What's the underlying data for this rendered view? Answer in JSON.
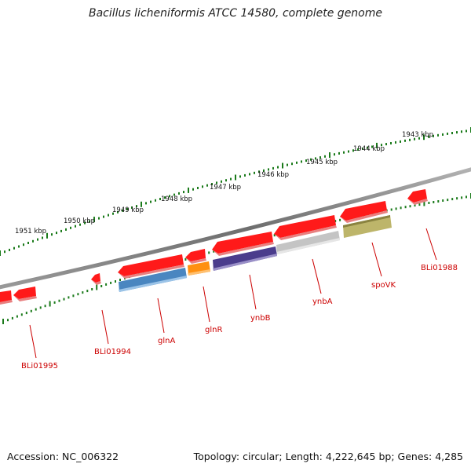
{
  "title": "Bacillus licheniformis ATCC 14580, complete genome",
  "accession": "Accession: NC_006322",
  "stats": "Topology: circular; Length: 4,222,645 bp; Genes: 4,285",
  "colors": {
    "backbone": "#7a7a7a",
    "tick": "#1a7a1a",
    "label": "#cc0000",
    "gene_default": "#ff1a1a",
    "glnA": "#4a86c0",
    "glnR": "#ff9010",
    "ynbB": "#4a3c8c",
    "ynbA": "#bfbfbf",
    "spoVK": "#bdb56a"
  },
  "kbp_labels": [
    "1943 kbp",
    "1944 kbp",
    "1945 kbp",
    "1946 kbp",
    "1947 kbp",
    "1948 kbp",
    "1949 kbp",
    "1950 kbp",
    "1951 kbp"
  ],
  "gene_labels": [
    "BLi01988",
    "spoVK",
    "ynbA",
    "ynbB",
    "glnR",
    "glnA",
    "BLi01994",
    "BLi01995"
  ]
}
